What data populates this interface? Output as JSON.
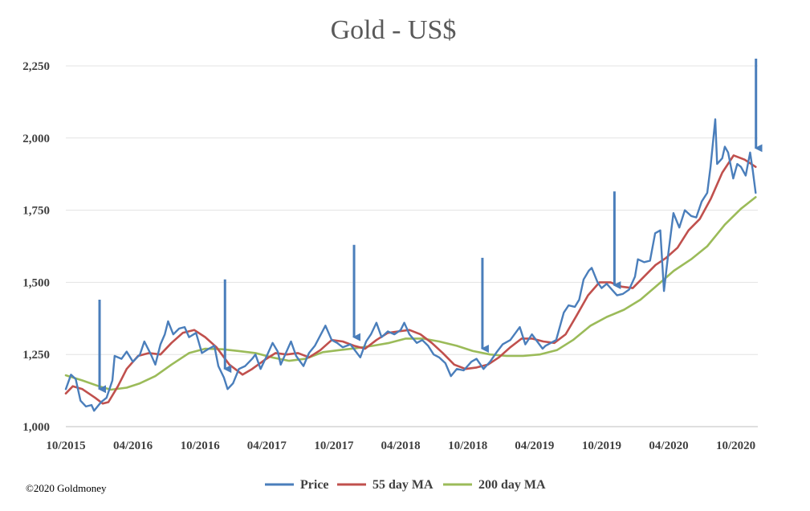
{
  "chart_data": {
    "type": "line",
    "title": "Gold - US$",
    "copyright": "©2020 Goldmoney",
    "x_range": [
      "2015-10-01",
      "2020-11-30"
    ],
    "ylim": [
      1000,
      2250
    ],
    "yticks": [
      1000,
      1250,
      1500,
      1750,
      2000,
      2250
    ],
    "ytick_labels": [
      "1,000",
      "1,250",
      "1,500",
      "1,750",
      "2,000",
      "2,250"
    ],
    "xticks": [
      "2015-10-01",
      "2016-04-01",
      "2016-10-01",
      "2017-04-01",
      "2017-10-01",
      "2018-04-01",
      "2018-10-01",
      "2019-04-01",
      "2019-10-01",
      "2020-04-01",
      "2020-10-01"
    ],
    "xtick_labels": [
      "10/2015",
      "04/2016",
      "10/2016",
      "04/2017",
      "10/2017",
      "04/2018",
      "10/2018",
      "04/2019",
      "10/2019",
      "04/2020",
      "10/2020"
    ],
    "grid": "horizontal",
    "legend_position": "bottom",
    "series": [
      {
        "name": "Price",
        "color": "#4a7ebb",
        "points": [
          [
            "2015-10-01",
            1130
          ],
          [
            "2015-10-15",
            1180
          ],
          [
            "2015-10-28",
            1165
          ],
          [
            "2015-11-10",
            1090
          ],
          [
            "2015-11-25",
            1070
          ],
          [
            "2015-12-10",
            1075
          ],
          [
            "2015-12-17",
            1055
          ],
          [
            "2016-01-05",
            1085
          ],
          [
            "2016-01-20",
            1100
          ],
          [
            "2016-02-05",
            1160
          ],
          [
            "2016-02-11",
            1245
          ],
          [
            "2016-03-01",
            1235
          ],
          [
            "2016-03-15",
            1260
          ],
          [
            "2016-04-01",
            1225
          ],
          [
            "2016-04-20",
            1250
          ],
          [
            "2016-05-02",
            1295
          ],
          [
            "2016-05-20",
            1250
          ],
          [
            "2016-06-01",
            1215
          ],
          [
            "2016-06-15",
            1285
          ],
          [
            "2016-06-27",
            1320
          ],
          [
            "2016-07-06",
            1365
          ],
          [
            "2016-07-20",
            1320
          ],
          [
            "2016-08-05",
            1340
          ],
          [
            "2016-08-20",
            1345
          ],
          [
            "2016-09-01",
            1310
          ],
          [
            "2016-09-20",
            1325
          ],
          [
            "2016-10-06",
            1255
          ],
          [
            "2016-10-25",
            1270
          ],
          [
            "2016-11-09",
            1280
          ],
          [
            "2016-11-20",
            1210
          ],
          [
            "2016-12-05",
            1170
          ],
          [
            "2016-12-15",
            1130
          ],
          [
            "2016-12-30",
            1150
          ],
          [
            "2017-01-15",
            1200
          ],
          [
            "2017-02-01",
            1210
          ],
          [
            "2017-02-20",
            1235
          ],
          [
            "2017-03-01",
            1250
          ],
          [
            "2017-03-15",
            1200
          ],
          [
            "2017-04-01",
            1245
          ],
          [
            "2017-04-17",
            1290
          ],
          [
            "2017-05-01",
            1260
          ],
          [
            "2017-05-09",
            1215
          ],
          [
            "2017-06-06",
            1295
          ],
          [
            "2017-06-20",
            1245
          ],
          [
            "2017-07-10",
            1210
          ],
          [
            "2017-07-25",
            1255
          ],
          [
            "2017-08-10",
            1280
          ],
          [
            "2017-09-08",
            1350
          ],
          [
            "2017-09-25",
            1300
          ],
          [
            "2017-10-10",
            1290
          ],
          [
            "2017-10-25",
            1275
          ],
          [
            "2017-11-15",
            1285
          ],
          [
            "2017-12-12",
            1240
          ],
          [
            "2017-12-28",
            1295
          ],
          [
            "2018-01-10",
            1320
          ],
          [
            "2018-01-25",
            1360
          ],
          [
            "2018-02-08",
            1310
          ],
          [
            "2018-02-25",
            1330
          ],
          [
            "2018-03-15",
            1320
          ],
          [
            "2018-04-01",
            1335
          ],
          [
            "2018-04-11",
            1360
          ],
          [
            "2018-04-25",
            1320
          ],
          [
            "2018-05-15",
            1290
          ],
          [
            "2018-05-30",
            1300
          ],
          [
            "2018-06-15",
            1280
          ],
          [
            "2018-06-30",
            1250
          ],
          [
            "2018-07-15",
            1240
          ],
          [
            "2018-08-01",
            1220
          ],
          [
            "2018-08-16",
            1175
          ],
          [
            "2018-09-01",
            1200
          ],
          [
            "2018-09-20",
            1195
          ],
          [
            "2018-10-11",
            1225
          ],
          [
            "2018-10-25",
            1235
          ],
          [
            "2018-11-13",
            1200
          ],
          [
            "2018-12-01",
            1225
          ],
          [
            "2018-12-20",
            1260
          ],
          [
            "2019-01-04",
            1285
          ],
          [
            "2019-01-25",
            1300
          ],
          [
            "2019-02-20",
            1345
          ],
          [
            "2019-03-07",
            1285
          ],
          [
            "2019-03-25",
            1320
          ],
          [
            "2019-04-23",
            1270
          ],
          [
            "2019-05-01",
            1280
          ],
          [
            "2019-05-30",
            1300
          ],
          [
            "2019-06-20",
            1395
          ],
          [
            "2019-07-03",
            1420
          ],
          [
            "2019-07-20",
            1415
          ],
          [
            "2019-08-01",
            1440
          ],
          [
            "2019-08-13",
            1510
          ],
          [
            "2019-08-27",
            1540
          ],
          [
            "2019-09-04",
            1550
          ],
          [
            "2019-09-20",
            1500
          ],
          [
            "2019-10-01",
            1480
          ],
          [
            "2019-10-15",
            1495
          ],
          [
            "2019-11-12",
            1455
          ],
          [
            "2019-11-28",
            1460
          ],
          [
            "2019-12-15",
            1475
          ],
          [
            "2019-12-31",
            1520
          ],
          [
            "2020-01-08",
            1580
          ],
          [
            "2020-01-25",
            1570
          ],
          [
            "2020-02-10",
            1575
          ],
          [
            "2020-02-24",
            1670
          ],
          [
            "2020-03-09",
            1680
          ],
          [
            "2020-03-19",
            1470
          ],
          [
            "2020-03-31",
            1600
          ],
          [
            "2020-04-14",
            1740
          ],
          [
            "2020-04-30",
            1690
          ],
          [
            "2020-05-15",
            1750
          ],
          [
            "2020-06-01",
            1730
          ],
          [
            "2020-06-15",
            1725
          ],
          [
            "2020-06-30",
            1780
          ],
          [
            "2020-07-15",
            1810
          ],
          [
            "2020-07-24",
            1900
          ],
          [
            "2020-08-06",
            2065
          ],
          [
            "2020-08-11",
            1910
          ],
          [
            "2020-08-25",
            1930
          ],
          [
            "2020-09-01",
            1970
          ],
          [
            "2020-09-10",
            1950
          ],
          [
            "2020-09-24",
            1860
          ],
          [
            "2020-10-05",
            1910
          ],
          [
            "2020-10-15",
            1900
          ],
          [
            "2020-10-28",
            1870
          ],
          [
            "2020-11-09",
            1950
          ],
          [
            "2020-11-16",
            1890
          ],
          [
            "2020-11-24",
            1810
          ]
        ]
      },
      {
        "name": "55 day MA",
        "color": "#c0504d",
        "points": [
          [
            "2015-10-01",
            1115
          ],
          [
            "2015-10-20",
            1140
          ],
          [
            "2015-11-15",
            1130
          ],
          [
            "2015-12-20",
            1100
          ],
          [
            "2016-01-10",
            1080
          ],
          [
            "2016-01-25",
            1085
          ],
          [
            "2016-02-20",
            1140
          ],
          [
            "2016-03-15",
            1200
          ],
          [
            "2016-04-15",
            1245
          ],
          [
            "2016-05-15",
            1255
          ],
          [
            "2016-06-15",
            1250
          ],
          [
            "2016-07-15",
            1290
          ],
          [
            "2016-08-15",
            1325
          ],
          [
            "2016-09-15",
            1335
          ],
          [
            "2016-10-15",
            1310
          ],
          [
            "2016-11-15",
            1275
          ],
          [
            "2016-12-20",
            1215
          ],
          [
            "2017-01-25",
            1180
          ],
          [
            "2017-02-20",
            1200
          ],
          [
            "2017-03-25",
            1230
          ],
          [
            "2017-04-25",
            1255
          ],
          [
            "2017-05-25",
            1250
          ],
          [
            "2017-06-25",
            1255
          ],
          [
            "2017-07-25",
            1240
          ],
          [
            "2017-08-25",
            1265
          ],
          [
            "2017-09-25",
            1300
          ],
          [
            "2017-10-25",
            1295
          ],
          [
            "2017-11-25",
            1280
          ],
          [
            "2017-12-25",
            1270
          ],
          [
            "2018-01-25",
            1300
          ],
          [
            "2018-02-25",
            1325
          ],
          [
            "2018-03-25",
            1330
          ],
          [
            "2018-04-25",
            1335
          ],
          [
            "2018-05-25",
            1320
          ],
          [
            "2018-06-25",
            1290
          ],
          [
            "2018-07-25",
            1255
          ],
          [
            "2018-08-25",
            1215
          ],
          [
            "2018-09-25",
            1200
          ],
          [
            "2018-10-25",
            1205
          ],
          [
            "2018-11-25",
            1215
          ],
          [
            "2018-12-25",
            1240
          ],
          [
            "2019-01-25",
            1275
          ],
          [
            "2019-02-25",
            1305
          ],
          [
            "2019-03-25",
            1305
          ],
          [
            "2019-04-25",
            1295
          ],
          [
            "2019-05-25",
            1290
          ],
          [
            "2019-06-25",
            1320
          ],
          [
            "2019-07-25",
            1385
          ],
          [
            "2019-08-25",
            1455
          ],
          [
            "2019-09-25",
            1500
          ],
          [
            "2019-10-25",
            1500
          ],
          [
            "2019-11-25",
            1485
          ],
          [
            "2019-12-25",
            1480
          ],
          [
            "2020-01-25",
            1520
          ],
          [
            "2020-02-25",
            1560
          ],
          [
            "2020-03-25",
            1585
          ],
          [
            "2020-04-25",
            1620
          ],
          [
            "2020-05-25",
            1680
          ],
          [
            "2020-06-25",
            1720
          ],
          [
            "2020-07-25",
            1790
          ],
          [
            "2020-08-25",
            1880
          ],
          [
            "2020-09-25",
            1940
          ],
          [
            "2020-10-25",
            1925
          ],
          [
            "2020-11-24",
            1900
          ]
        ]
      },
      {
        "name": "200 day MA",
        "color": "#9bbb59",
        "points": [
          [
            "2015-10-01",
            1178
          ],
          [
            "2015-11-15",
            1160
          ],
          [
            "2015-12-30",
            1140
          ],
          [
            "2016-02-01",
            1128
          ],
          [
            "2016-03-15",
            1135
          ],
          [
            "2016-04-20",
            1150
          ],
          [
            "2016-06-01",
            1175
          ],
          [
            "2016-07-15",
            1215
          ],
          [
            "2016-09-01",
            1255
          ],
          [
            "2016-10-15",
            1270
          ],
          [
            "2016-12-01",
            1268
          ],
          [
            "2017-01-15",
            1262
          ],
          [
            "2017-03-01",
            1255
          ],
          [
            "2017-04-15",
            1240
          ],
          [
            "2017-06-01",
            1228
          ],
          [
            "2017-07-15",
            1235
          ],
          [
            "2017-09-01",
            1258
          ],
          [
            "2017-10-15",
            1265
          ],
          [
            "2017-12-01",
            1272
          ],
          [
            "2018-01-15",
            1280
          ],
          [
            "2018-03-01",
            1290
          ],
          [
            "2018-04-15",
            1305
          ],
          [
            "2018-06-01",
            1305
          ],
          [
            "2018-07-15",
            1295
          ],
          [
            "2018-09-01",
            1280
          ],
          [
            "2018-10-15",
            1262
          ],
          [
            "2018-12-01",
            1250
          ],
          [
            "2019-01-15",
            1245
          ],
          [
            "2019-03-01",
            1245
          ],
          [
            "2019-04-15",
            1250
          ],
          [
            "2019-06-01",
            1265
          ],
          [
            "2019-07-15",
            1300
          ],
          [
            "2019-09-01",
            1350
          ],
          [
            "2019-10-15",
            1380
          ],
          [
            "2019-12-01",
            1405
          ],
          [
            "2020-01-15",
            1440
          ],
          [
            "2020-03-01",
            1490
          ],
          [
            "2020-04-15",
            1540
          ],
          [
            "2020-06-01",
            1580
          ],
          [
            "2020-07-15",
            1625
          ],
          [
            "2020-09-01",
            1700
          ],
          [
            "2020-10-15",
            1755
          ],
          [
            "2020-11-24",
            1795
          ]
        ]
      }
    ],
    "annotations": [
      {
        "type": "arrow",
        "color": "#4a7ebb",
        "from": [
          "2016-01-01",
          1440
        ],
        "to": [
          "2016-01-01",
          1130
        ]
      },
      {
        "type": "arrow",
        "color": "#4a7ebb",
        "from": [
          "2016-12-08",
          1510
        ],
        "to": [
          "2016-12-08",
          1200
        ]
      },
      {
        "type": "arrow",
        "color": "#4a7ebb",
        "from": [
          "2017-11-25",
          1630
        ],
        "to": [
          "2017-11-25",
          1310
        ]
      },
      {
        "type": "arrow",
        "color": "#4a7ebb",
        "from": [
          "2018-11-10",
          1585
        ],
        "to": [
          "2018-11-10",
          1270
        ]
      },
      {
        "type": "arrow",
        "color": "#4a7ebb",
        "from": [
          "2019-11-05",
          1815
        ],
        "to": [
          "2019-11-05",
          1490
        ]
      },
      {
        "type": "arrow",
        "color": "#4a7ebb",
        "from": [
          "2020-11-25",
          2275
        ],
        "to": [
          "2020-11-25",
          1965
        ]
      }
    ]
  }
}
